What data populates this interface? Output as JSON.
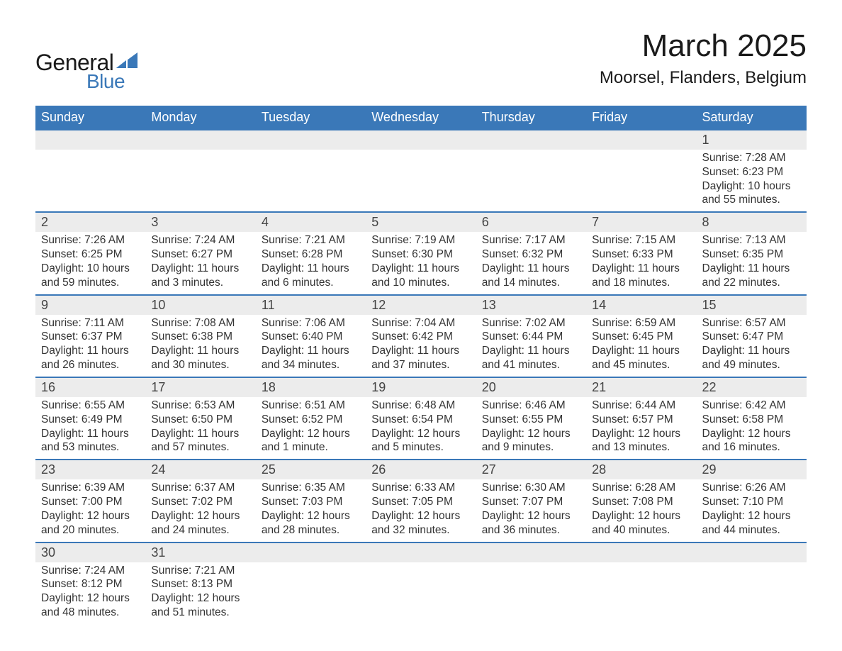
{
  "logo": {
    "text_general": "General",
    "text_blue": "Blue",
    "brand_color": "#3a78b8"
  },
  "title": "March 2025",
  "location": "Moorsel, Flanders, Belgium",
  "colors": {
    "header_bg": "#3a78b8",
    "header_text": "#ffffff",
    "daynum_bg": "#ececec",
    "border": "#3a78b8",
    "text": "#333333"
  },
  "day_headers": [
    "Sunday",
    "Monday",
    "Tuesday",
    "Wednesday",
    "Thursday",
    "Friday",
    "Saturday"
  ],
  "weeks": [
    [
      null,
      null,
      null,
      null,
      null,
      null,
      {
        "n": "1",
        "sr": "Sunrise: 7:28 AM",
        "ss": "Sunset: 6:23 PM",
        "d1": "Daylight: 10 hours",
        "d2": "and 55 minutes."
      }
    ],
    [
      {
        "n": "2",
        "sr": "Sunrise: 7:26 AM",
        "ss": "Sunset: 6:25 PM",
        "d1": "Daylight: 10 hours",
        "d2": "and 59 minutes."
      },
      {
        "n": "3",
        "sr": "Sunrise: 7:24 AM",
        "ss": "Sunset: 6:27 PM",
        "d1": "Daylight: 11 hours",
        "d2": "and 3 minutes."
      },
      {
        "n": "4",
        "sr": "Sunrise: 7:21 AM",
        "ss": "Sunset: 6:28 PM",
        "d1": "Daylight: 11 hours",
        "d2": "and 6 minutes."
      },
      {
        "n": "5",
        "sr": "Sunrise: 7:19 AM",
        "ss": "Sunset: 6:30 PM",
        "d1": "Daylight: 11 hours",
        "d2": "and 10 minutes."
      },
      {
        "n": "6",
        "sr": "Sunrise: 7:17 AM",
        "ss": "Sunset: 6:32 PM",
        "d1": "Daylight: 11 hours",
        "d2": "and 14 minutes."
      },
      {
        "n": "7",
        "sr": "Sunrise: 7:15 AM",
        "ss": "Sunset: 6:33 PM",
        "d1": "Daylight: 11 hours",
        "d2": "and 18 minutes."
      },
      {
        "n": "8",
        "sr": "Sunrise: 7:13 AM",
        "ss": "Sunset: 6:35 PM",
        "d1": "Daylight: 11 hours",
        "d2": "and 22 minutes."
      }
    ],
    [
      {
        "n": "9",
        "sr": "Sunrise: 7:11 AM",
        "ss": "Sunset: 6:37 PM",
        "d1": "Daylight: 11 hours",
        "d2": "and 26 minutes."
      },
      {
        "n": "10",
        "sr": "Sunrise: 7:08 AM",
        "ss": "Sunset: 6:38 PM",
        "d1": "Daylight: 11 hours",
        "d2": "and 30 minutes."
      },
      {
        "n": "11",
        "sr": "Sunrise: 7:06 AM",
        "ss": "Sunset: 6:40 PM",
        "d1": "Daylight: 11 hours",
        "d2": "and 34 minutes."
      },
      {
        "n": "12",
        "sr": "Sunrise: 7:04 AM",
        "ss": "Sunset: 6:42 PM",
        "d1": "Daylight: 11 hours",
        "d2": "and 37 minutes."
      },
      {
        "n": "13",
        "sr": "Sunrise: 7:02 AM",
        "ss": "Sunset: 6:44 PM",
        "d1": "Daylight: 11 hours",
        "d2": "and 41 minutes."
      },
      {
        "n": "14",
        "sr": "Sunrise: 6:59 AM",
        "ss": "Sunset: 6:45 PM",
        "d1": "Daylight: 11 hours",
        "d2": "and 45 minutes."
      },
      {
        "n": "15",
        "sr": "Sunrise: 6:57 AM",
        "ss": "Sunset: 6:47 PM",
        "d1": "Daylight: 11 hours",
        "d2": "and 49 minutes."
      }
    ],
    [
      {
        "n": "16",
        "sr": "Sunrise: 6:55 AM",
        "ss": "Sunset: 6:49 PM",
        "d1": "Daylight: 11 hours",
        "d2": "and 53 minutes."
      },
      {
        "n": "17",
        "sr": "Sunrise: 6:53 AM",
        "ss": "Sunset: 6:50 PM",
        "d1": "Daylight: 11 hours",
        "d2": "and 57 minutes."
      },
      {
        "n": "18",
        "sr": "Sunrise: 6:51 AM",
        "ss": "Sunset: 6:52 PM",
        "d1": "Daylight: 12 hours",
        "d2": "and 1 minute."
      },
      {
        "n": "19",
        "sr": "Sunrise: 6:48 AM",
        "ss": "Sunset: 6:54 PM",
        "d1": "Daylight: 12 hours",
        "d2": "and 5 minutes."
      },
      {
        "n": "20",
        "sr": "Sunrise: 6:46 AM",
        "ss": "Sunset: 6:55 PM",
        "d1": "Daylight: 12 hours",
        "d2": "and 9 minutes."
      },
      {
        "n": "21",
        "sr": "Sunrise: 6:44 AM",
        "ss": "Sunset: 6:57 PM",
        "d1": "Daylight: 12 hours",
        "d2": "and 13 minutes."
      },
      {
        "n": "22",
        "sr": "Sunrise: 6:42 AM",
        "ss": "Sunset: 6:58 PM",
        "d1": "Daylight: 12 hours",
        "d2": "and 16 minutes."
      }
    ],
    [
      {
        "n": "23",
        "sr": "Sunrise: 6:39 AM",
        "ss": "Sunset: 7:00 PM",
        "d1": "Daylight: 12 hours",
        "d2": "and 20 minutes."
      },
      {
        "n": "24",
        "sr": "Sunrise: 6:37 AM",
        "ss": "Sunset: 7:02 PM",
        "d1": "Daylight: 12 hours",
        "d2": "and 24 minutes."
      },
      {
        "n": "25",
        "sr": "Sunrise: 6:35 AM",
        "ss": "Sunset: 7:03 PM",
        "d1": "Daylight: 12 hours",
        "d2": "and 28 minutes."
      },
      {
        "n": "26",
        "sr": "Sunrise: 6:33 AM",
        "ss": "Sunset: 7:05 PM",
        "d1": "Daylight: 12 hours",
        "d2": "and 32 minutes."
      },
      {
        "n": "27",
        "sr": "Sunrise: 6:30 AM",
        "ss": "Sunset: 7:07 PM",
        "d1": "Daylight: 12 hours",
        "d2": "and 36 minutes."
      },
      {
        "n": "28",
        "sr": "Sunrise: 6:28 AM",
        "ss": "Sunset: 7:08 PM",
        "d1": "Daylight: 12 hours",
        "d2": "and 40 minutes."
      },
      {
        "n": "29",
        "sr": "Sunrise: 6:26 AM",
        "ss": "Sunset: 7:10 PM",
        "d1": "Daylight: 12 hours",
        "d2": "and 44 minutes."
      }
    ],
    [
      {
        "n": "30",
        "sr": "Sunrise: 7:24 AM",
        "ss": "Sunset: 8:12 PM",
        "d1": "Daylight: 12 hours",
        "d2": "and 48 minutes."
      },
      {
        "n": "31",
        "sr": "Sunrise: 7:21 AM",
        "ss": "Sunset: 8:13 PM",
        "d1": "Daylight: 12 hours",
        "d2": "and 51 minutes."
      },
      null,
      null,
      null,
      null,
      null
    ]
  ]
}
